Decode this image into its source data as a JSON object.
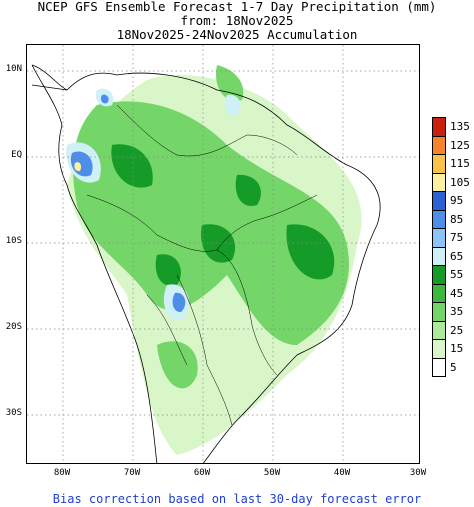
{
  "title": {
    "line1": "NCEP GFS Ensemble Forecast 1-7 Day Precipitation (mm)",
    "line2": "from: 18Nov2025",
    "line3": "18Nov2025-24Nov2025 Accumulation"
  },
  "footer": "Bias correction based on last 30-day forecast error",
  "axes": {
    "lat_labels": [
      "10N",
      "EQ",
      "10S",
      "20S",
      "30S"
    ],
    "lon_labels": [
      "80W",
      "70W",
      "60W",
      "50W",
      "40W",
      "30W"
    ]
  },
  "legend": {
    "labels": [
      "135",
      "125",
      "115",
      "105",
      "95",
      "85",
      "75",
      "65",
      "55",
      "45",
      "35",
      "25",
      "15",
      "5"
    ],
    "colors": [
      "#c8220e",
      "#f7832b",
      "#fbc24a",
      "#fdf0a0",
      "#2a62d6",
      "#4d8ee8",
      "#8ec4f5",
      "#cff0f6",
      "#159c28",
      "#3cb83c",
      "#74d568",
      "#aee89a",
      "#d8f6c8",
      "#ffffff"
    ]
  },
  "map": {
    "grid": "dotted",
    "colors": {
      "green_light": "#d8f6c8",
      "green_mid": "#74d568",
      "green_dark": "#159c28",
      "cyan": "#cff0f6",
      "blue": "#4d8ee8",
      "yellow": "#fdf0a0"
    }
  }
}
